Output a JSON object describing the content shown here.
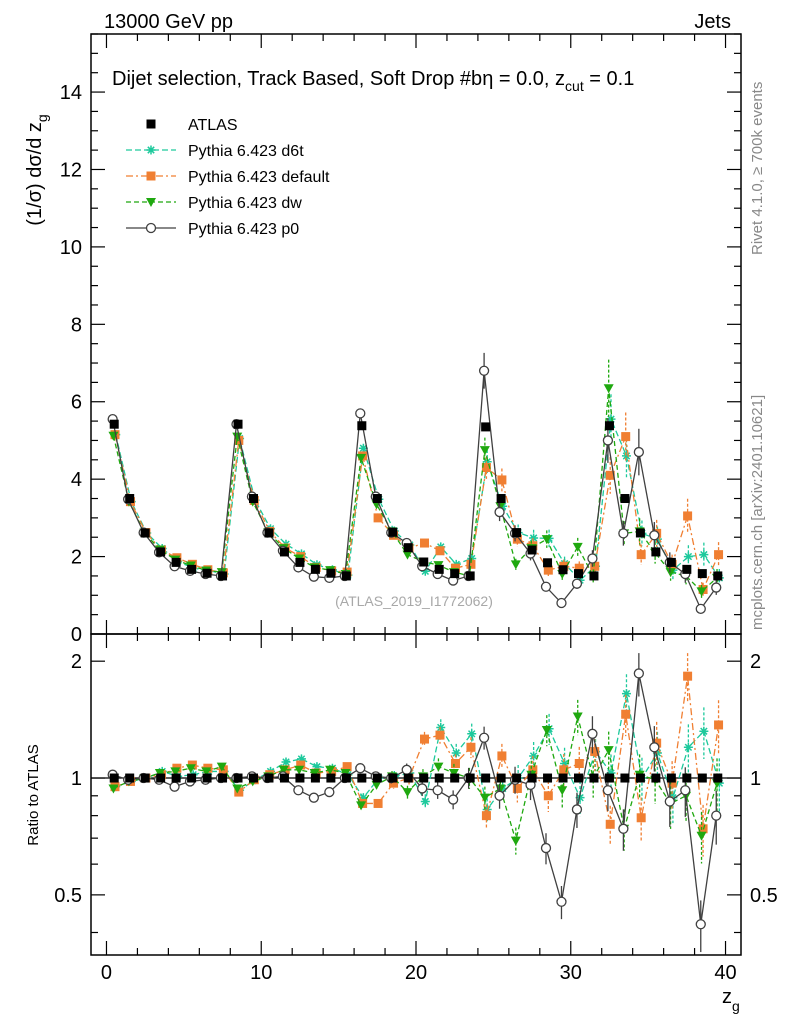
{
  "header": {
    "left": "13000 GeV pp",
    "right": "Jets"
  },
  "side": {
    "rivet": "Rivet 4.1.0, ≥ 700k events",
    "mcplots": "mcplots.cern.ch [arXiv:2401.10621]"
  },
  "colors": {
    "atlas": "#000000",
    "d6t": "#1dc99c",
    "default": "#f07f32",
    "dw": "#1fa80f",
    "p0": "#404040"
  },
  "chart_data": {
    "type": "line",
    "title": "Dijet selection, Track Based, Soft Drop #b",
    "title_suffix": "η = 0.0, z",
    "title_sub": "cut",
    "title_tail": " = 0.1",
    "watermark": "(ATLAS_2019_I1772062)",
    "xlabel": "z",
    "xlabel_sub": "g",
    "ylabel": "(1/σ) dσ/d z",
    "ylabel_sub": "g",
    "ratio_ylabel": "Ratio to ATLAS",
    "xlim": [
      -1,
      41
    ],
    "ylim": [
      0,
      15.5
    ],
    "ratio_ylim": [
      0.35,
      2.35
    ],
    "xticks": [
      0,
      10,
      20,
      30,
      40
    ],
    "xtick_labels": [
      "0",
      "10",
      "20",
      "30",
      "40"
    ],
    "yticks": [
      0,
      2,
      4,
      6,
      8,
      10,
      12,
      14
    ],
    "ytick_labels": [
      "0",
      "2",
      "4",
      "6",
      "8",
      "10",
      "12",
      "14"
    ],
    "ratio_yticks": [
      0.5,
      1,
      2
    ],
    "ratio_ytick_labels": [
      "0.5",
      "1",
      "2"
    ],
    "x": [
      0.5,
      1.5,
      2.5,
      3.5,
      4.5,
      5.5,
      6.5,
      7.5,
      8.5,
      9.5,
      10.5,
      11.5,
      12.5,
      13.5,
      14.5,
      15.5,
      16.5,
      17.5,
      18.5,
      19.5,
      20.5,
      21.5,
      22.5,
      23.5,
      24.5,
      25.5,
      26.5,
      27.5,
      28.5,
      29.5,
      30.5,
      31.5,
      32.5,
      33.5,
      34.5,
      35.5,
      36.5,
      37.5,
      38.5,
      39.5
    ],
    "series": [
      {
        "name": "ATLAS",
        "key": "atlas",
        "marker": "square",
        "values": [
          5.42,
          3.5,
          2.61,
          2.12,
          1.85,
          1.67,
          1.57,
          1.5,
          5.42,
          3.5,
          2.61,
          2.12,
          1.85,
          1.67,
          1.57,
          1.5,
          5.38,
          3.5,
          2.63,
          2.23,
          1.86,
          1.67,
          1.56,
          1.5,
          5.35,
          3.5,
          2.62,
          2.17,
          1.84,
          1.66,
          1.56,
          1.5,
          5.38,
          3.5,
          2.61,
          2.12,
          1.85,
          1.67,
          1.56,
          1.5
        ],
        "ratio": [
          1,
          1,
          1,
          1,
          1,
          1,
          1,
          1,
          1,
          1,
          1,
          1,
          1,
          1,
          1,
          1,
          1,
          1,
          1,
          1,
          1,
          1,
          1,
          1,
          1,
          1,
          1,
          1,
          1,
          1,
          1,
          1,
          1,
          1,
          1,
          1,
          1,
          1,
          1,
          1
        ]
      },
      {
        "name": "Pythia 6.423 d6t",
        "key": "d6t",
        "marker": "star",
        "values": [
          5.15,
          3.42,
          2.61,
          2.21,
          1.88,
          1.7,
          1.64,
          1.55,
          5.05,
          3.46,
          2.72,
          2.32,
          2.07,
          1.79,
          1.66,
          1.52,
          4.8,
          3.48,
          2.66,
          2.3,
          1.62,
          2.25,
          1.8,
          1.95,
          4.45,
          3.3,
          2.62,
          2.48,
          2.47,
          1.82,
          1.39,
          1.75,
          5.55,
          4.6,
          2.6,
          2.45,
          1.65,
          2.0,
          2.05,
          1.45
        ],
        "ratio": [
          0.95,
          0.98,
          1.0,
          1.04,
          1.01,
          1.02,
          1.04,
          1.04,
          0.93,
          0.99,
          1.04,
          1.1,
          1.12,
          1.07,
          1.06,
          1.02,
          0.89,
          1.0,
          1.01,
          1.03,
          0.87,
          1.35,
          1.16,
          1.3,
          0.83,
          0.94,
          1.0,
          1.14,
          1.34,
          1.09,
          0.89,
          1.17,
          1.03,
          1.65,
          1.0,
          1.16,
          0.89,
          1.2,
          1.32,
          0.97
        ]
      },
      {
        "name": "Pythia 6.423 default",
        "key": "default",
        "marker": "square",
        "values": [
          5.15,
          3.42,
          2.62,
          2.17,
          1.97,
          1.8,
          1.66,
          1.58,
          5.0,
          3.45,
          2.65,
          2.22,
          2.0,
          1.72,
          1.63,
          1.6,
          4.6,
          3.0,
          2.55,
          2.22,
          2.35,
          2.15,
          1.7,
          1.8,
          4.3,
          3.98,
          2.45,
          2.28,
          1.65,
          1.75,
          1.7,
          1.75,
          4.1,
          5.1,
          2.05,
          2.6,
          1.8,
          3.05,
          1.15,
          2.05
        ],
        "ratio": [
          0.95,
          0.98,
          1.0,
          1.02,
          1.06,
          1.08,
          1.06,
          1.05,
          0.92,
          0.99,
          1.02,
          1.05,
          1.08,
          1.03,
          1.04,
          1.07,
          0.86,
          0.86,
          0.97,
          1.0,
          1.26,
          1.29,
          1.09,
          1.2,
          0.8,
          1.14,
          0.94,
          1.05,
          0.9,
          1.05,
          1.09,
          1.17,
          0.76,
          1.46,
          0.79,
          1.23,
          0.97,
          1.83,
          0.74,
          1.37
        ]
      },
      {
        "name": "Pythia 6.423 dw",
        "key": "dw",
        "marker": "triangle-down",
        "values": [
          5.12,
          3.42,
          2.62,
          2.18,
          1.92,
          1.77,
          1.64,
          1.6,
          5.1,
          3.42,
          2.63,
          2.22,
          1.95,
          1.72,
          1.65,
          1.55,
          4.55,
          3.35,
          2.65,
          2.05,
          1.87,
          1.78,
          1.6,
          1.5,
          4.75,
          3.3,
          1.8,
          2.22,
          2.45,
          1.55,
          2.25,
          1.5,
          6.35,
          2.6,
          2.65,
          2.1,
          1.6,
          1.5,
          1.1,
          1.45
        ],
        "ratio": [
          0.94,
          0.98,
          1.0,
          1.03,
          1.04,
          1.06,
          1.04,
          1.07,
          0.94,
          0.98,
          1.01,
          1.05,
          1.05,
          1.03,
          1.05,
          1.03,
          0.85,
          0.96,
          1.01,
          0.92,
          1.01,
          1.07,
          1.03,
          1.0,
          0.89,
          0.94,
          0.69,
          1.02,
          1.33,
          0.93,
          1.44,
          1.0,
          1.18,
          0.74,
          1.02,
          0.99,
          0.86,
          0.9,
          0.71,
          0.97
        ]
      },
      {
        "name": "Pythia 6.423 p0",
        "key": "p0",
        "marker": "circle-open",
        "values": [
          5.55,
          3.48,
          2.62,
          2.11,
          1.75,
          1.63,
          1.55,
          1.5,
          5.42,
          3.55,
          2.62,
          2.15,
          1.72,
          1.48,
          1.45,
          1.5,
          5.7,
          3.55,
          2.62,
          2.35,
          1.75,
          1.55,
          1.38,
          1.5,
          6.8,
          3.15,
          2.6,
          2.08,
          1.22,
          0.8,
          1.3,
          1.95,
          5.0,
          2.6,
          4.7,
          2.55,
          1.85,
          1.55,
          0.65,
          1.2
        ],
        "ratio": [
          1.02,
          0.99,
          1.0,
          0.99,
          0.95,
          0.98,
          0.99,
          1.0,
          1.0,
          1.01,
          1.0,
          1.01,
          0.93,
          0.89,
          0.92,
          1.0,
          1.06,
          1.01,
          1.0,
          1.05,
          0.94,
          0.93,
          0.88,
          1.0,
          1.27,
          0.9,
          0.99,
          0.96,
          0.66,
          0.48,
          0.83,
          1.3,
          0.93,
          0.74,
          1.86,
          1.2,
          0.87,
          0.93,
          0.42,
          0.8
        ]
      }
    ]
  }
}
